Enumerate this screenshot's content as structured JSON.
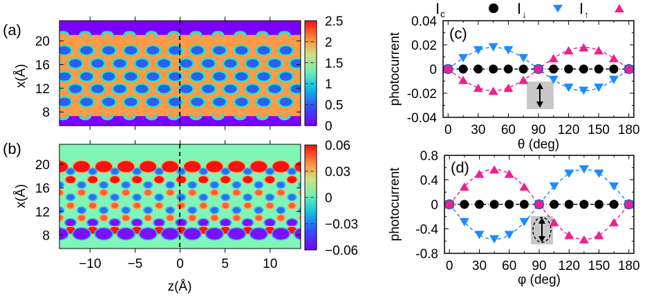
{
  "chart_data": [
    {
      "id": "a",
      "type": "heatmap",
      "panel_label": "(a)",
      "xlabel": "",
      "ylabel": "x(Å)",
      "xlim": [
        -13.4,
        13.4
      ],
      "ylim": [
        5.7,
        23.4
      ],
      "xticks": [
        -10,
        -5,
        0,
        5,
        10
      ],
      "xtick_labels_shown": false,
      "yticks": [
        8,
        12,
        16,
        20
      ],
      "ytick_labels": [
        "8",
        "12",
        "16",
        "20"
      ],
      "colorbar": {
        "range": [
          0,
          2.5
        ],
        "ticks": [
          0,
          0.5,
          1,
          1.5,
          2,
          2.5
        ],
        "tick_labels": [
          "0",
          "0.5",
          "1",
          "1.5",
          "2",
          "2.5"
        ],
        "colormap": "rainbow"
      },
      "marker_line": {
        "z": 0,
        "style": "dashed"
      },
      "description": "Charge density of zigzag ribbon: honeycomb pattern with low-density holes (blue) in high-density (orange) region between x≈7 and x≈21 Å; vacuum (violet) outside",
      "pattern": {
        "hole_period_z": 2.46,
        "hole_rows_x": [
          18.4,
          16.2,
          14.0,
          11.9,
          9.7
        ],
        "band_x_range": [
          7.3,
          21.0
        ],
        "background_value": 0.0,
        "peak_value": 2.0
      }
    },
    {
      "id": "b",
      "type": "heatmap",
      "panel_label": "(b)",
      "xlabel": "z(Å)",
      "ylabel": "x(Å)",
      "xlim": [
        -13.4,
        13.4
      ],
      "ylim": [
        5.7,
        23.4
      ],
      "xticks": [
        -10,
        -5,
        0,
        5,
        10
      ],
      "xtick_labels": [
        "−10",
        "−5",
        "0",
        "5",
        "10"
      ],
      "yticks": [
        8,
        12,
        16,
        20
      ],
      "ytick_labels": [
        "8",
        "12",
        "16",
        "20"
      ],
      "colorbar": {
        "range": [
          -0.06,
          0.06
        ],
        "ticks": [
          -0.06,
          -0.03,
          0,
          0.03,
          0.06
        ],
        "tick_labels": [
          "−0.06",
          "−0.03",
          "0",
          "0.03",
          "0.06"
        ],
        "colormap": "rainbow"
      },
      "marker_line": {
        "z": 0,
        "style": "dashed"
      },
      "description": "Spin density: positive (red) large lobes at top edge x≈19.6 Å, negative (violet) large lobes at bottom edge x≈8.2 Å, alternating smaller features in between",
      "pattern": {
        "period_z": 2.46,
        "rows": [
          {
            "x": 19.6,
            "value": 0.06,
            "size": "large",
            "z_offset": 0.0
          },
          {
            "x": 18.8,
            "value": -0.035,
            "size": "small",
            "z_offset": 1.23
          },
          {
            "x": 17.4,
            "value": 0.05,
            "size": "medium",
            "z_offset": 1.23
          },
          {
            "x": 16.5,
            "value": -0.03,
            "size": "small",
            "z_offset": 0.0
          },
          {
            "x": 15.2,
            "value": 0.025,
            "size": "small",
            "z_offset": 0.0
          },
          {
            "x": 14.4,
            "value": -0.03,
            "size": "small",
            "z_offset": 1.23
          },
          {
            "x": 13.0,
            "value": 0.02,
            "size": "small",
            "z_offset": 1.23
          },
          {
            "x": 12.2,
            "value": -0.035,
            "size": "small",
            "z_offset": 0.0
          },
          {
            "x": 10.9,
            "value": 0.03,
            "size": "small",
            "z_offset": 0.0
          },
          {
            "x": 10.1,
            "value": -0.05,
            "size": "medium",
            "z_offset": 1.23
          },
          {
            "x": 8.8,
            "value": 0.05,
            "size": "medium",
            "z_offset": 1.23
          },
          {
            "x": 8.2,
            "value": -0.06,
            "size": "large",
            "z_offset": 0.0
          }
        ]
      }
    },
    {
      "id": "c",
      "type": "line",
      "panel_label": "(c)",
      "xlabel": "θ (deg)",
      "ylabel": "photocurrent",
      "xlim": [
        -5,
        185
      ],
      "ylim": [
        -0.04,
        0.04
      ],
      "xticks": [
        0,
        30,
        60,
        90,
        120,
        150,
        180
      ],
      "xtick_labels": [
        "0",
        "30",
        "60",
        "90",
        "120",
        "150",
        "180"
      ],
      "yticks": [
        -0.04,
        -0.02,
        0,
        0.02,
        0.04
      ],
      "ytick_labels": [
        "-0.04",
        "-0.02",
        "0",
        "0.02",
        "0.04"
      ],
      "inset": "linear polarization (vertical double arrow)",
      "x": [
        0,
        15,
        30,
        45,
        60,
        75,
        90,
        105,
        120,
        135,
        150,
        165,
        180
      ],
      "series": [
        {
          "name": "I_c",
          "marker": "circle",
          "color": "#000000",
          "values": [
            0,
            0,
            0,
            0,
            0,
            0,
            0,
            0,
            0,
            0,
            0,
            0,
            0
          ]
        },
        {
          "name": "I_down",
          "marker": "triangle-down",
          "color": "#1a8cff",
          "values": [
            0,
            0.009,
            0.0155,
            0.018,
            0.0155,
            0.009,
            0,
            -0.009,
            -0.0155,
            -0.018,
            -0.0155,
            -0.009,
            0
          ]
        },
        {
          "name": "I_up",
          "marker": "triangle-up",
          "color": "#f0208c",
          "values": [
            0,
            -0.009,
            -0.0155,
            -0.018,
            -0.0155,
            -0.009,
            0,
            0.009,
            0.0155,
            0.018,
            0.0155,
            0.009,
            0
          ]
        }
      ]
    },
    {
      "id": "d",
      "type": "line",
      "panel_label": "(d)",
      "xlabel": "φ (deg)",
      "ylabel": "photocurrent",
      "xlim": [
        -5,
        185
      ],
      "ylim": [
        -0.8,
        0.8
      ],
      "xticks": [
        0,
        30,
        60,
        90,
        120,
        150,
        180
      ],
      "xtick_labels": [
        "0",
        "30",
        "60",
        "90",
        "120",
        "150",
        "180"
      ],
      "yticks": [
        -0.8,
        -0.4,
        0,
        0.4,
        0.8
      ],
      "ytick_labels": [
        "-0.8",
        "-0.4",
        "0",
        "0.4",
        "0.8"
      ],
      "inset": "elliptical polarization (dashed ellipse with vertical double arrow)",
      "x": [
        0,
        15,
        30,
        45,
        60,
        75,
        90,
        105,
        120,
        135,
        150,
        165,
        180
      ],
      "series": [
        {
          "name": "I_c",
          "marker": "circle",
          "color": "#000000",
          "values": [
            0,
            0,
            0,
            0,
            0,
            0,
            0,
            0,
            0,
            0,
            0,
            0,
            0
          ]
        },
        {
          "name": "I_down",
          "marker": "triangle-down",
          "color": "#1a8cff",
          "values": [
            0,
            -0.29,
            -0.5,
            -0.57,
            -0.5,
            -0.29,
            0,
            0.29,
            0.5,
            0.57,
            0.5,
            0.29,
            0
          ]
        },
        {
          "name": "I_up",
          "marker": "triangle-up",
          "color": "#f0208c",
          "values": [
            0,
            0.29,
            0.5,
            0.57,
            0.5,
            0.29,
            0,
            -0.29,
            -0.5,
            -0.57,
            -0.5,
            -0.29,
            0
          ]
        }
      ]
    }
  ],
  "legend": {
    "placement": "top",
    "entries": [
      {
        "main": "I",
        "sub": "c",
        "marker": "circle",
        "color": "#000000"
      },
      {
        "main": "I",
        "sub": "↓",
        "marker": "triangle-down",
        "color": "#1a8cff"
      },
      {
        "main": "I",
        "sub": "↑",
        "marker": "triangle-up",
        "color": "#f0208c"
      }
    ]
  }
}
